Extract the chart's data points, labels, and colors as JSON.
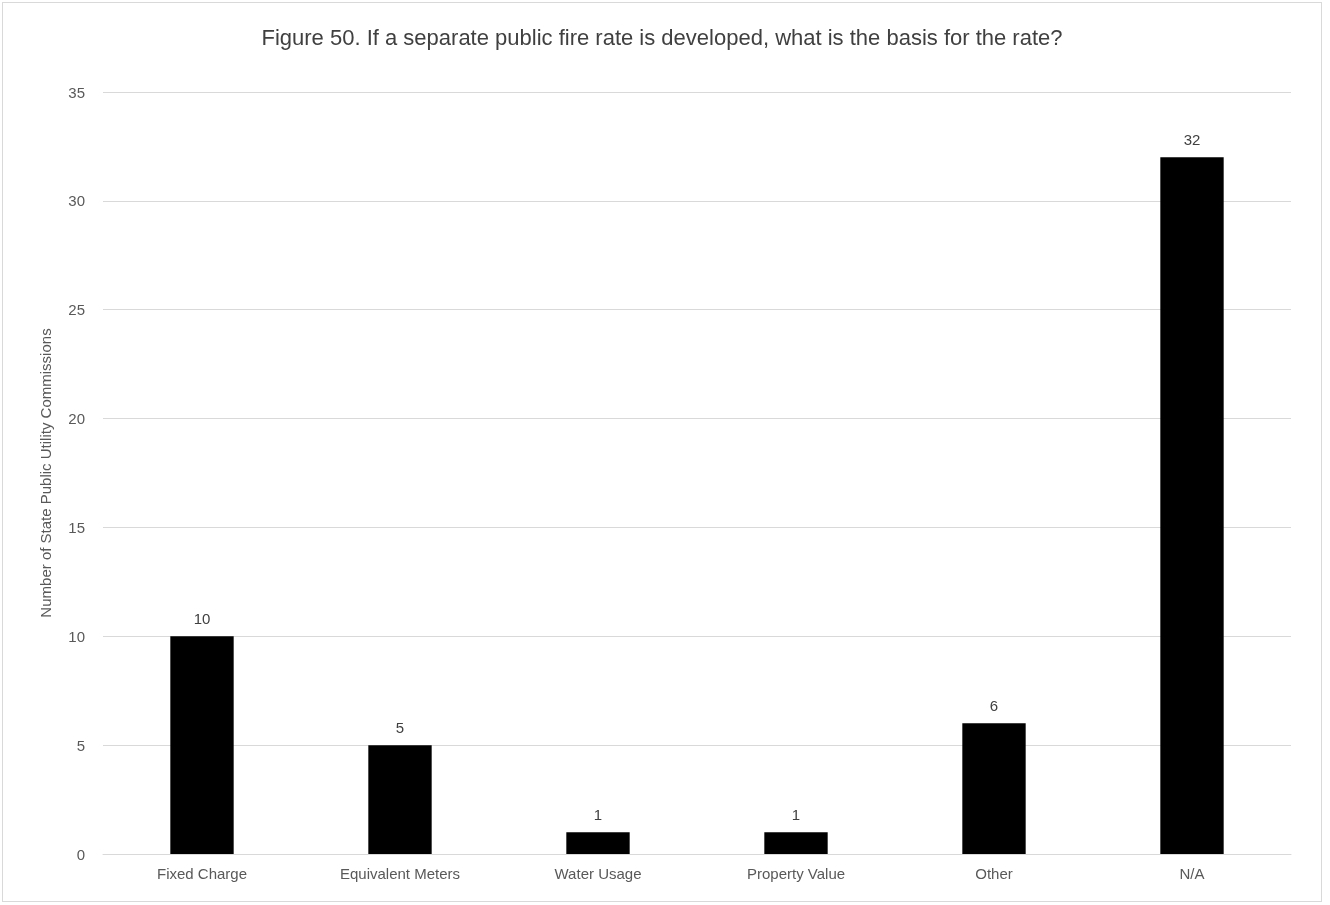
{
  "chart_data": {
    "type": "bar",
    "title": "Figure 50. If a separate public fire rate is developed, what is the basis for the rate?",
    "ylabel": "Number of State Public Utility Commissions",
    "categories": [
      "Fixed Charge",
      "Equivalent Meters",
      "Water Usage",
      "Property Value",
      "Other",
      "N/A"
    ],
    "values": [
      10,
      5,
      1,
      1,
      6,
      32
    ],
    "color": "#000000",
    "ylim": [
      0,
      35
    ],
    "yticks": [
      0,
      5,
      10,
      15,
      20,
      25,
      30,
      35
    ],
    "grid": "y",
    "data_labels": true
  }
}
